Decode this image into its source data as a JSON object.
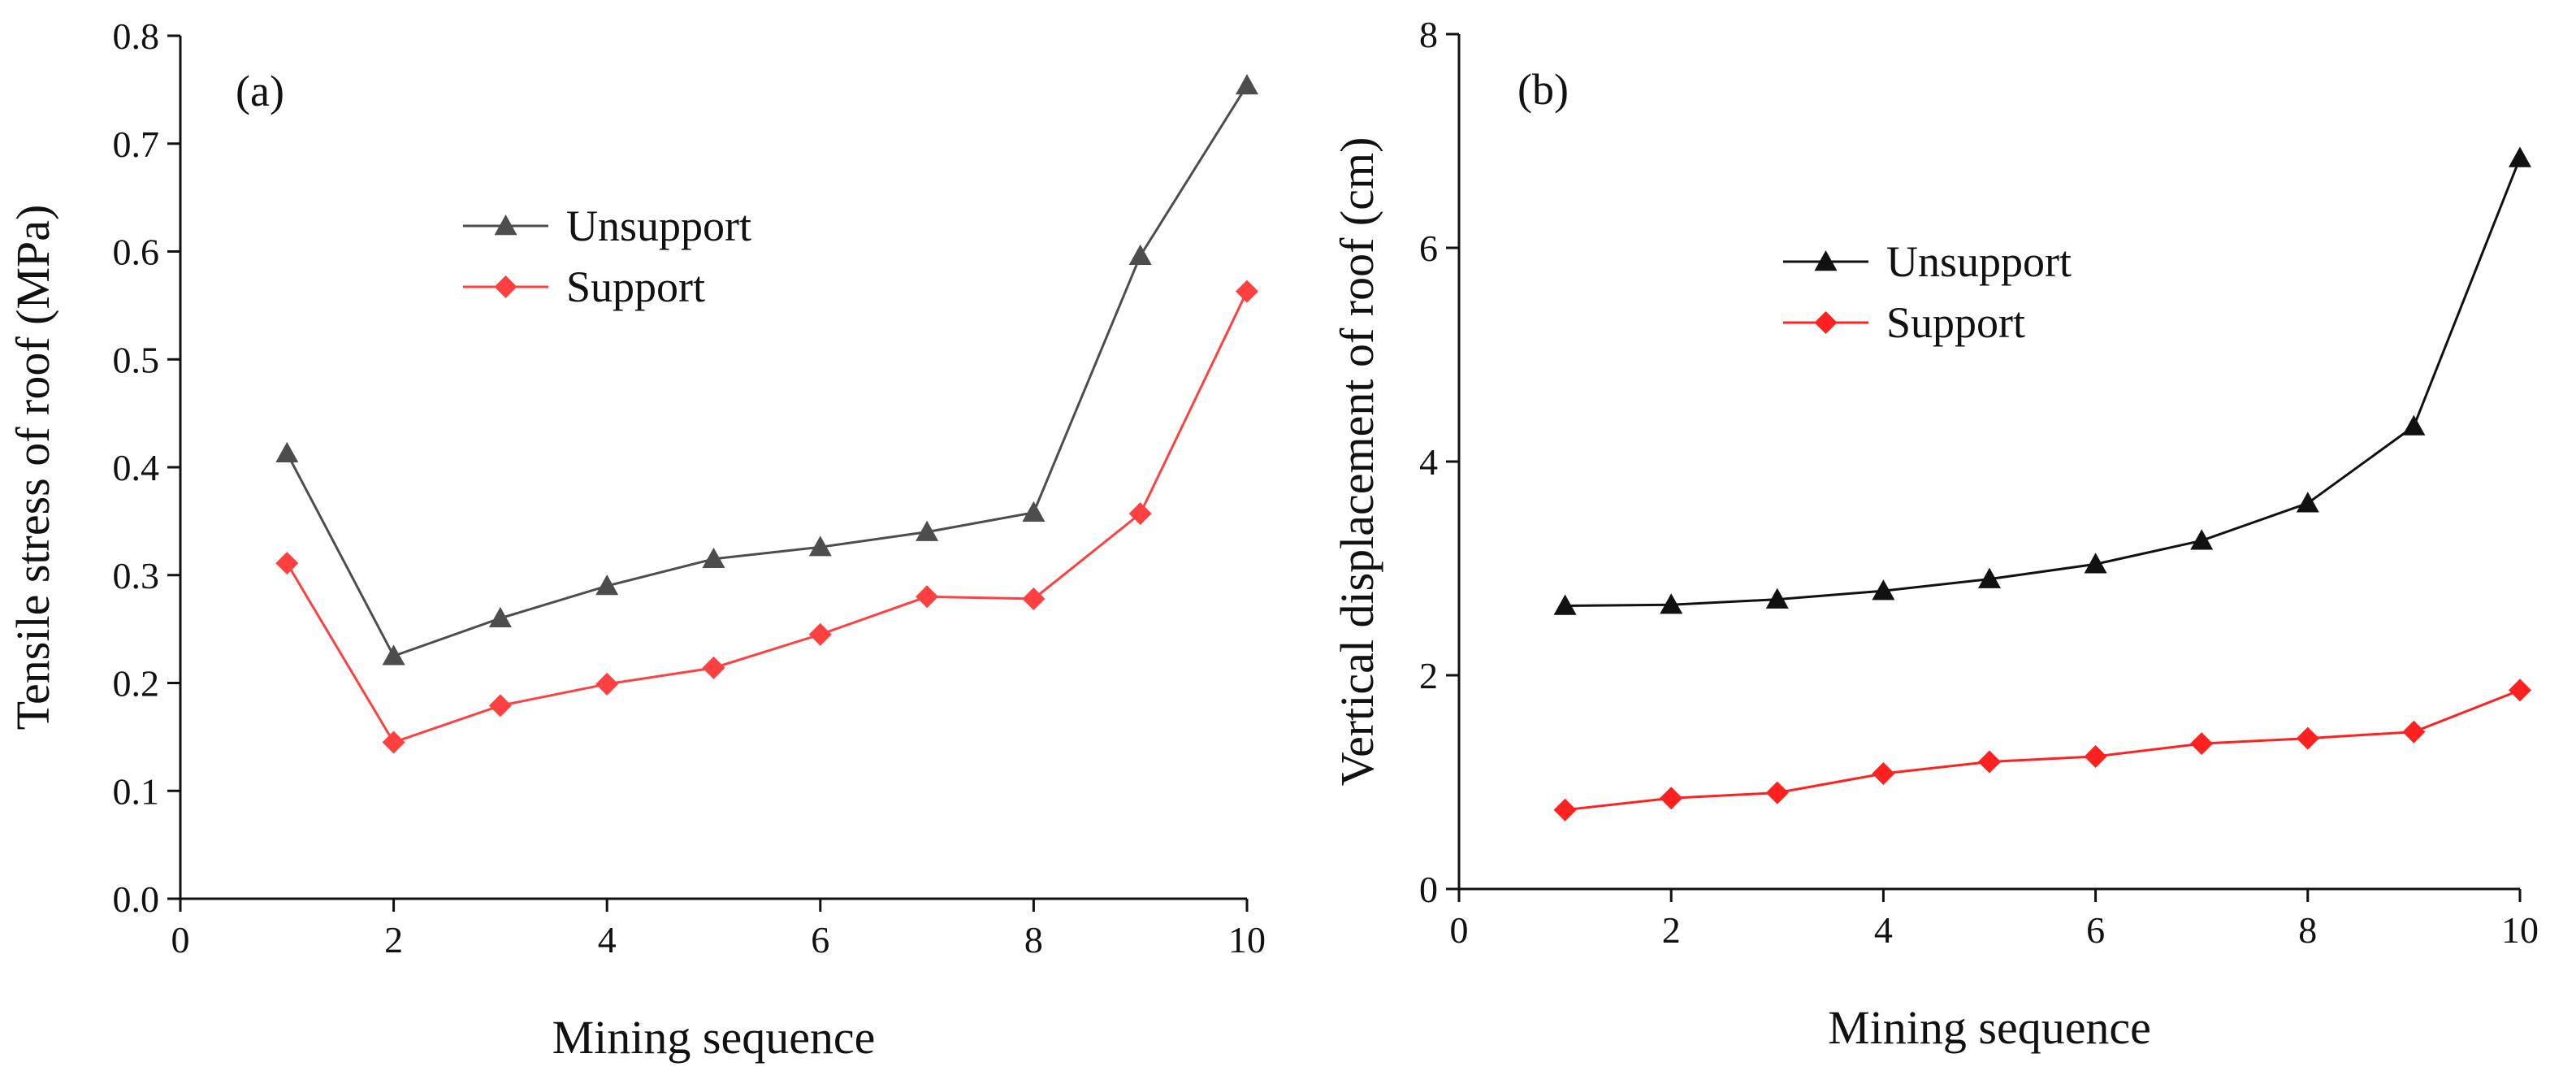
{
  "chart_data": [
    {
      "type": "line",
      "panel_label": "(a)",
      "xlabel": "Mining sequence",
      "ylabel": "Tensile stress of roof (MPa)",
      "xlim": [
        0,
        10
      ],
      "ylim": [
        0,
        0.8
      ],
      "x_ticks": [
        0,
        2,
        4,
        6,
        8,
        10
      ],
      "x_tick_labels": [
        "0",
        "2",
        "4",
        "6",
        "8",
        "10"
      ],
      "y_ticks": [
        0,
        0.1,
        0.2,
        0.3,
        0.4,
        0.5,
        0.6,
        0.7,
        0.8
      ],
      "y_tick_labels": [
        "0.0",
        "0.1",
        "0.2",
        "0.3",
        "0.4",
        "0.5",
        "0.6",
        "0.7",
        "0.8"
      ],
      "legend_position": "upper-center",
      "x": [
        1,
        2,
        3,
        4,
        5,
        6,
        7,
        8,
        9,
        10
      ],
      "series": [
        {
          "name": "Unsupport",
          "color": "#4d4d4d",
          "marker": "triangle",
          "values": [
            0.413,
            0.225,
            0.26,
            0.29,
            0.315,
            0.326,
            0.34,
            0.358,
            0.596,
            0.754
          ]
        },
        {
          "name": "Support",
          "color": "#ff4040",
          "marker": "diamond",
          "values": [
            0.311,
            0.145,
            0.179,
            0.199,
            0.214,
            0.245,
            0.28,
            0.278,
            0.357,
            0.563
          ]
        }
      ]
    },
    {
      "type": "line",
      "panel_label": "(b)",
      "xlabel": "Mining sequence",
      "ylabel": "Vertical displacement of roof (cm)",
      "xlim": [
        0,
        10
      ],
      "ylim": [
        0,
        8
      ],
      "x_ticks": [
        0,
        2,
        4,
        6,
        8,
        10
      ],
      "x_tick_labels": [
        "0",
        "2",
        "4",
        "6",
        "8",
        "10"
      ],
      "y_ticks": [
        0,
        2,
        4,
        6,
        8
      ],
      "y_tick_labels": [
        "0",
        "2",
        "4",
        "6",
        "8"
      ],
      "legend_position": "upper-left",
      "x": [
        1,
        2,
        3,
        4,
        5,
        6,
        7,
        8,
        9,
        10
      ],
      "series": [
        {
          "name": "Unsupport",
          "color": "#111111",
          "marker": "triangle",
          "values": [
            2.65,
            2.66,
            2.71,
            2.79,
            2.9,
            3.04,
            3.26,
            3.61,
            4.33,
            6.84
          ]
        },
        {
          "name": "Support",
          "color": "#ff2020",
          "marker": "diamond",
          "values": [
            0.74,
            0.85,
            0.9,
            1.08,
            1.19,
            1.24,
            1.36,
            1.41,
            1.47,
            1.86
          ]
        }
      ]
    }
  ]
}
